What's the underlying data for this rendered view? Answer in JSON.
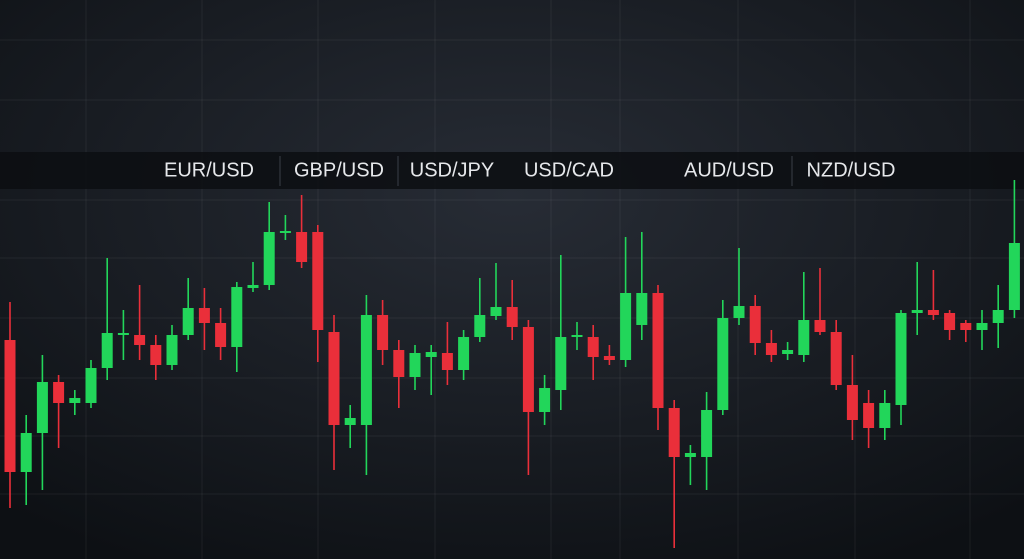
{
  "chart_data": {
    "type": "candlestick",
    "labels": [
      "EUR/USD",
      "GBP/USD",
      "USD/JPY",
      "USD/CAD",
      "AUD/USD",
      "NZD/USD"
    ],
    "categories": [
      null,
      null,
      null,
      null,
      null,
      null,
      null,
      null,
      null,
      null,
      null,
      null,
      null,
      null,
      null,
      null,
      null,
      null,
      null,
      null,
      null,
      null,
      null,
      null,
      null,
      null,
      null,
      null,
      null,
      null,
      null,
      null,
      null,
      null,
      null,
      null,
      null,
      null,
      null,
      null,
      null,
      null,
      null,
      null,
      null,
      null,
      null,
      null,
      null,
      null,
      null,
      null,
      null,
      null,
      null,
      null,
      null,
      null,
      null,
      null,
      null,
      null,
      null
    ],
    "open": [
      219,
      87,
      126,
      177,
      156,
      156,
      191,
      224,
      224,
      214,
      194,
      224,
      251,
      236,
      212,
      271,
      274,
      326,
      327,
      327,
      227,
      134,
      134,
      244,
      209,
      182,
      202,
      206,
      189,
      222,
      243,
      252,
      232,
      147,
      169,
      222,
      222,
      203,
      199,
      234,
      266,
      151,
      102,
      102,
      149,
      241,
      253,
      216,
      205,
      204,
      239,
      227,
      174,
      156,
      131,
      154,
      246,
      249,
      246,
      236,
      229,
      236,
      249
    ],
    "high": [
      257,
      144,
      204,
      184,
      169,
      199,
      301,
      249,
      274,
      224,
      234,
      281,
      271,
      251,
      277,
      297,
      357,
      344,
      364,
      334,
      244,
      154,
      264,
      259,
      219,
      214,
      214,
      237,
      229,
      281,
      296,
      279,
      239,
      184,
      304,
      237,
      234,
      214,
      322,
      327,
      274,
      159,
      114,
      167,
      259,
      311,
      264,
      229,
      217,
      287,
      291,
      239,
      204,
      169,
      169,
      249,
      297,
      289,
      249,
      239,
      249,
      274,
      379
    ],
    "low": [
      51,
      54,
      69,
      111,
      144,
      151,
      179,
      199,
      199,
      179,
      189,
      219,
      209,
      199,
      187,
      267,
      269,
      319,
      291,
      197,
      89,
      111,
      84,
      194,
      151,
      169,
      164,
      174,
      179,
      217,
      239,
      219,
      84,
      134,
      149,
      209,
      179,
      194,
      192,
      219,
      129,
      11,
      74,
      69,
      144,
      234,
      204,
      197,
      199,
      197,
      224,
      169,
      119,
      111,
      119,
      134,
      224,
      239,
      219,
      217,
      209,
      211,
      241
    ],
    "close": [
      87,
      126,
      177,
      156,
      161,
      191,
      226,
      226,
      214,
      194,
      224,
      251,
      236,
      212,
      272,
      274,
      327,
      328,
      297,
      229,
      134,
      141,
      244,
      209,
      182,
      206,
      207,
      189,
      222,
      244,
      252,
      232,
      147,
      171,
      222,
      224,
      202,
      199,
      266,
      266,
      151,
      102,
      106,
      149,
      241,
      253,
      216,
      204,
      209,
      239,
      227,
      174,
      139,
      131,
      156,
      246,
      249,
      244,
      229,
      229,
      236,
      249,
      316
    ],
    "up_color": "#22d65a",
    "down_color": "#ea2f3a",
    "ylim": [
      0,
      559
    ]
  }
}
